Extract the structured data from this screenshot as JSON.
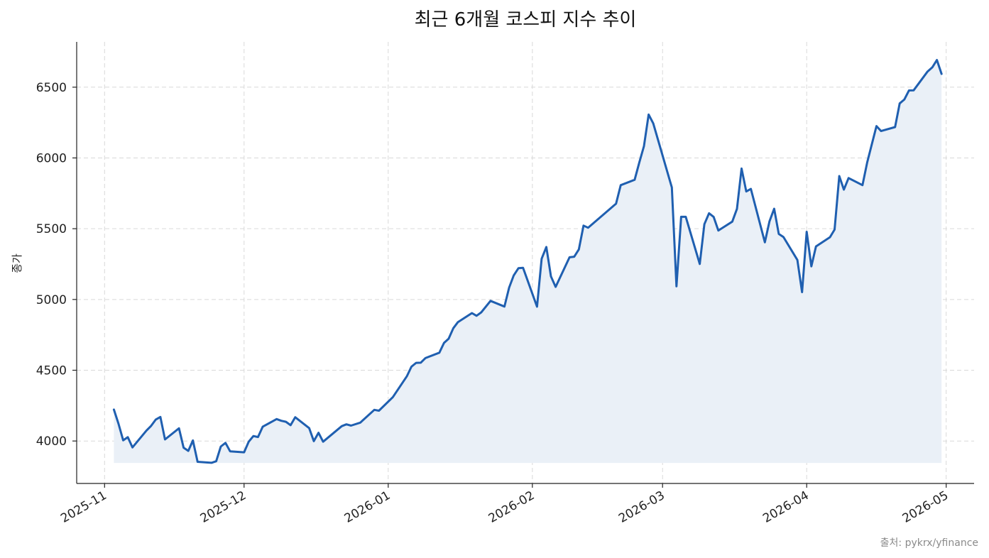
{
  "chart_data": {
    "type": "area",
    "title": "최근 6개월 코스피 지수 추이",
    "xlabel": "",
    "ylabel": "종가",
    "source": "출처: pykrx/yfinance",
    "line_color": "#1f5fb0",
    "fill_color": "#eaf0f7",
    "grid": true,
    "ylim": [
      3700,
      6820
    ],
    "xlim": [
      "2025-10-26",
      "2026-05-07"
    ],
    "baseline": 3845,
    "yticks": [
      4000,
      4500,
      5000,
      5500,
      6000,
      6500
    ],
    "xticks": [
      "2025-11",
      "2025-12",
      "2026-01",
      "2026-02",
      "2026-03",
      "2026-04",
      "2026-05"
    ],
    "series": [
      {
        "points": [
          [
            "2025-11-03",
            4222
          ],
          [
            "2025-11-04",
            4122
          ],
          [
            "2025-11-05",
            4005
          ],
          [
            "2025-11-06",
            4027
          ],
          [
            "2025-11-07",
            3955
          ],
          [
            "2025-11-10",
            4073
          ],
          [
            "2025-11-11",
            4107
          ],
          [
            "2025-11-12",
            4151
          ],
          [
            "2025-11-13",
            4170
          ],
          [
            "2025-11-14",
            4011
          ],
          [
            "2025-11-17",
            4090
          ],
          [
            "2025-11-18",
            3953
          ],
          [
            "2025-11-19",
            3930
          ],
          [
            "2025-11-20",
            4004
          ],
          [
            "2025-11-21",
            3853
          ],
          [
            "2025-11-24",
            3846
          ],
          [
            "2025-11-25",
            3857
          ],
          [
            "2025-11-26",
            3961
          ],
          [
            "2025-11-27",
            3987
          ],
          [
            "2025-11-28",
            3927
          ],
          [
            "2025-12-01",
            3920
          ],
          [
            "2025-12-02",
            3995
          ],
          [
            "2025-12-03",
            4035
          ],
          [
            "2025-12-04",
            4028
          ],
          [
            "2025-12-05",
            4101
          ],
          [
            "2025-12-08",
            4155
          ],
          [
            "2025-12-09",
            4143
          ],
          [
            "2025-12-10",
            4136
          ],
          [
            "2025-12-11",
            4112
          ],
          [
            "2025-12-12",
            4168
          ],
          [
            "2025-12-15",
            4091
          ],
          [
            "2025-12-16",
            3999
          ],
          [
            "2025-12-17",
            4058
          ],
          [
            "2025-12-18",
            3995
          ],
          [
            "2025-12-22",
            4105
          ],
          [
            "2025-12-23",
            4118
          ],
          [
            "2025-12-24",
            4109
          ],
          [
            "2025-12-26",
            4130
          ],
          [
            "2025-12-29",
            4220
          ],
          [
            "2025-12-30",
            4214
          ],
          [
            "2026-01-02",
            4310
          ],
          [
            "2026-01-05",
            4457
          ],
          [
            "2026-01-06",
            4525
          ],
          [
            "2026-01-07",
            4552
          ],
          [
            "2026-01-08",
            4553
          ],
          [
            "2026-01-09",
            4586
          ],
          [
            "2026-01-12",
            4624
          ],
          [
            "2026-01-13",
            4693
          ],
          [
            "2026-01-14",
            4723
          ],
          [
            "2026-01-15",
            4797
          ],
          [
            "2026-01-16",
            4840
          ],
          [
            "2026-01-19",
            4904
          ],
          [
            "2026-01-20",
            4885
          ],
          [
            "2026-01-21",
            4909
          ],
          [
            "2026-01-23",
            4990
          ],
          [
            "2026-01-26",
            4950
          ],
          [
            "2026-01-27",
            5084
          ],
          [
            "2026-01-28",
            5170
          ],
          [
            "2026-01-29",
            5221
          ],
          [
            "2026-01-30",
            5224
          ],
          [
            "2026-02-02",
            4949
          ],
          [
            "2026-02-03",
            5288
          ],
          [
            "2026-02-04",
            5371
          ],
          [
            "2026-02-05",
            5163
          ],
          [
            "2026-02-06",
            5089
          ],
          [
            "2026-02-09",
            5298
          ],
          [
            "2026-02-10",
            5302
          ],
          [
            "2026-02-11",
            5354
          ],
          [
            "2026-02-12",
            5522
          ],
          [
            "2026-02-13",
            5507
          ],
          [
            "2026-02-19",
            5677
          ],
          [
            "2026-02-20",
            5808
          ],
          [
            "2026-02-23",
            5846
          ],
          [
            "2026-02-24",
            5969
          ],
          [
            "2026-02-25",
            6083
          ],
          [
            "2026-02-26",
            6307
          ],
          [
            "2026-02-27",
            6244
          ],
          [
            "2026-03-03",
            5791
          ],
          [
            "2026-03-04",
            5093
          ],
          [
            "2026-03-05",
            5584
          ],
          [
            "2026-03-06",
            5584
          ],
          [
            "2026-03-09",
            5251
          ],
          [
            "2026-03-10",
            5532
          ],
          [
            "2026-03-11",
            5609
          ],
          [
            "2026-03-12",
            5583
          ],
          [
            "2026-03-13",
            5487
          ],
          [
            "2026-03-16",
            5550
          ],
          [
            "2026-03-17",
            5640
          ],
          [
            "2026-03-18",
            5925
          ],
          [
            "2026-03-19",
            5763
          ],
          [
            "2026-03-20",
            5781
          ],
          [
            "2026-03-23",
            5404
          ],
          [
            "2026-03-24",
            5552
          ],
          [
            "2026-03-25",
            5641
          ],
          [
            "2026-03-26",
            5463
          ],
          [
            "2026-03-27",
            5441
          ],
          [
            "2026-03-30",
            5279
          ],
          [
            "2026-03-31",
            5052
          ],
          [
            "2026-04-01",
            5478
          ],
          [
            "2026-04-02",
            5234
          ],
          [
            "2026-04-03",
            5375
          ],
          [
            "2026-04-06",
            5440
          ],
          [
            "2026-04-07",
            5494
          ],
          [
            "2026-04-08",
            5872
          ],
          [
            "2026-04-09",
            5776
          ],
          [
            "2026-04-10",
            5858
          ],
          [
            "2026-04-13",
            5808
          ],
          [
            "2026-04-14",
            5968
          ],
          [
            "2026-04-16",
            6225
          ],
          [
            "2026-04-17",
            6190
          ],
          [
            "2026-04-20",
            6218
          ],
          [
            "2026-04-21",
            6385
          ],
          [
            "2026-04-22",
            6413
          ],
          [
            "2026-04-23",
            6477
          ],
          [
            "2026-04-24",
            6478
          ],
          [
            "2026-04-27",
            6611
          ],
          [
            "2026-04-28",
            6640
          ],
          [
            "2026-04-29",
            6692
          ],
          [
            "2026-04-30",
            6594
          ]
        ]
      }
    ]
  }
}
